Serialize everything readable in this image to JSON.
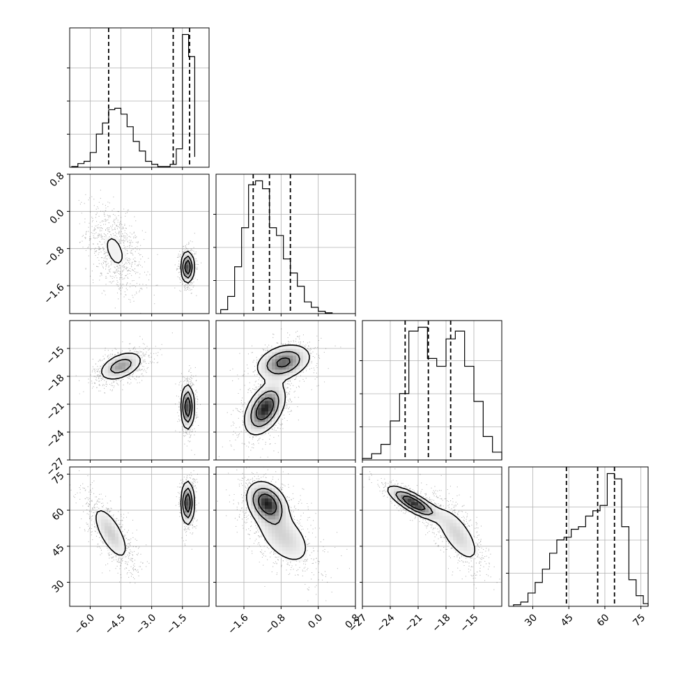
{
  "chart_data": {
    "type": "corner",
    "grid": true,
    "params": [
      {
        "range": [
          -7,
          -0.2
        ],
        "ticks": [
          -6.0,
          -4.5,
          -3.0,
          -1.5
        ],
        "tick_labels": [
          "−6.0",
          "−4.5",
          "−3.0",
          "−1.5"
        ]
      },
      {
        "range": [
          -2.2,
          0.8
        ],
        "ticks": [
          -1.6,
          -0.8,
          0.0,
          0.8
        ],
        "tick_labels": [
          "−1.6",
          "−0.8",
          "0.0",
          "0.8"
        ]
      },
      {
        "range": [
          -27,
          -12
        ],
        "ticks": [
          -27,
          -24,
          -21,
          -18,
          -15
        ],
        "tick_labels": [
          "−27",
          "−24",
          "−21",
          "−18",
          "−15"
        ]
      },
      {
        "range": [
          20,
          78
        ],
        "ticks": [
          30,
          45,
          60,
          75
        ],
        "tick_labels": [
          "30",
          "45",
          "60",
          "75"
        ]
      }
    ],
    "quantiles": [
      [
        -5.1,
        -1.95,
        -1.15
      ],
      [
        -1.4,
        -1.05,
        -0.6
      ],
      [
        -22.4,
        -19.9,
        -17.5
      ],
      [
        44.0,
        57.0,
        64.0
      ]
    ],
    "marginal_histograms": [
      {
        "edges": [
          -6.9,
          -6.6,
          -6.3,
          -6.0,
          -5.7,
          -5.4,
          -5.1,
          -4.8,
          -4.5,
          -4.2,
          -3.9,
          -3.6,
          -3.3,
          -3.0,
          -2.7,
          -2.4,
          -2.1,
          -1.8,
          -1.5,
          -1.2,
          -0.9
        ],
        "counts": [
          1,
          5,
          8,
          20,
          45,
          60,
          78,
          80,
          72,
          55,
          35,
          22,
          8,
          4,
          1,
          1,
          4,
          25,
          180,
          150,
          14
        ]
      },
      {
        "edges": [
          -2.1,
          -1.95,
          -1.8,
          -1.65,
          -1.5,
          -1.35,
          -1.2,
          -1.05,
          -0.9,
          -0.75,
          -0.6,
          -0.45,
          -0.3,
          -0.15,
          0.0,
          0.15,
          0.3
        ],
        "counts": [
          5,
          22,
          60,
          110,
          165,
          170,
          160,
          110,
          100,
          70,
          52,
          35,
          15,
          8,
          3,
          1
        ]
      },
      {
        "edges": [
          -27.0,
          -26.0,
          -25.0,
          -24.0,
          -23.0,
          -22.0,
          -21.0,
          -20.0,
          -19.0,
          -18.0,
          -17.0,
          -16.0,
          -15.0,
          -14.0,
          -13.0,
          -12.0
        ],
        "counts": [
          2,
          8,
          20,
          50,
          85,
          165,
          170,
          130,
          120,
          155,
          165,
          120,
          75,
          30,
          10
        ]
      },
      {
        "edges": [
          22,
          25,
          28,
          31,
          34,
          37,
          40,
          43,
          46,
          49,
          52,
          55,
          58,
          61,
          64,
          67,
          70,
          73,
          76,
          78
        ],
        "counts": [
          3,
          8,
          25,
          45,
          70,
          100,
          125,
          130,
          145,
          150,
          170,
          180,
          190,
          250,
          240,
          150,
          50,
          20,
          5
        ]
      }
    ],
    "pair_modes": {
      "1_0": [
        {
          "center": [
            -4.8,
            -0.85
          ],
          "sd": [
            0.55,
            0.4
          ],
          "rho": -0.45,
          "w": 0.55
        },
        {
          "center": [
            -1.25,
            -1.2
          ],
          "sd": [
            0.16,
            0.17
          ],
          "rho": 0.0,
          "w": 0.45
        }
      ],
      "2_0": [
        {
          "center": [
            -4.5,
            -16.9
          ],
          "sd": [
            0.55,
            0.8
          ],
          "rho": 0.45,
          "w": 0.55
        },
        {
          "center": [
            -1.25,
            -21.3
          ],
          "sd": [
            0.16,
            1.2
          ],
          "rho": 0.0,
          "w": 0.45
        }
      ],
      "2_1": [
        {
          "center": [
            -1.15,
            -21.5
          ],
          "sd": [
            0.22,
            1.4
          ],
          "rho": 0.45,
          "w": 0.55
        },
        {
          "center": [
            -0.75,
            -16.5
          ],
          "sd": [
            0.3,
            1.0
          ],
          "rho": 0.3,
          "w": 0.45
        }
      ],
      "3_0": [
        {
          "center": [
            -5.0,
            50.5
          ],
          "sd": [
            0.5,
            6.5
          ],
          "rho": -0.7,
          "w": 0.55
        },
        {
          "center": [
            -1.25,
            63.0
          ],
          "sd": [
            0.16,
            4.5
          ],
          "rho": 0.0,
          "w": 0.45
        }
      ],
      "3_1": [
        {
          "center": [
            -1.1,
            63.0
          ],
          "sd": [
            0.22,
            4.5
          ],
          "rho": -0.3,
          "w": 0.55
        },
        {
          "center": [
            -0.75,
            49.0
          ],
          "sd": [
            0.35,
            7.0
          ],
          "rho": -0.5,
          "w": 0.45
        }
      ],
      "3_2": [
        {
          "center": [
            -21.5,
            63.0
          ],
          "sd": [
            1.4,
            3.5
          ],
          "rho": -0.8,
          "w": 0.55
        },
        {
          "center": [
            -16.8,
            50.0
          ],
          "sd": [
            1.4,
            7.0
          ],
          "rho": -0.7,
          "w": 0.45
        }
      ]
    }
  }
}
